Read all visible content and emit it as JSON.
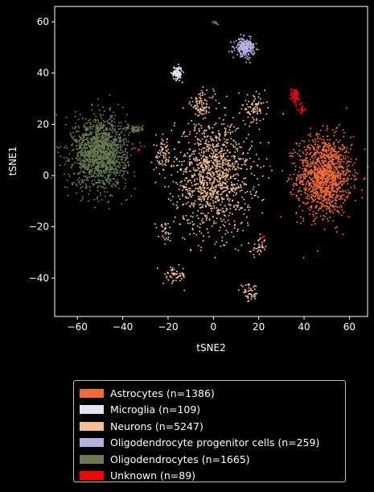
{
  "chart_data": {
    "type": "scatter",
    "xlabel": "tSNE2",
    "ylabel": "tSNE1",
    "xlim": [
      -70,
      68
    ],
    "ylim": [
      -55,
      66
    ],
    "xticks": [
      -60,
      -40,
      -20,
      0,
      20,
      40,
      60
    ],
    "yticks": [
      -40,
      -20,
      0,
      20,
      40,
      60
    ],
    "xtick_labels": [
      "−60",
      "−40",
      "−20",
      "0",
      "20",
      "40",
      "60"
    ],
    "ytick_labels": [
      "−40",
      "−20",
      "0",
      "20",
      "40",
      "60"
    ],
    "grid": false,
    "legend_position": "below plot",
    "series": [
      {
        "name": "Astrocytes (n=1386)",
        "color": "#f06b35",
        "count": 1386,
        "clusters": [
          {
            "x": 49,
            "y": 0,
            "sx": 7,
            "sy": 9
          }
        ]
      },
      {
        "name": "Microglia (n=109)",
        "color": "#e7e2f2",
        "count": 109,
        "clusters": [
          {
            "x": -16,
            "y": 40,
            "sx": 1.3,
            "sy": 1.5
          }
        ]
      },
      {
        "name": "Neurons (n=5247)",
        "color": "#f2be94",
        "count": 5247,
        "clusters": [
          {
            "x": 0,
            "y": 0,
            "sx": 10,
            "sy": 13
          },
          {
            "x": -5,
            "y": 28,
            "sx": 3,
            "sy": 3
          },
          {
            "x": 18,
            "y": 26,
            "sx": 3,
            "sy": 3
          },
          {
            "x": -21,
            "y": -22,
            "sx": 1.5,
            "sy": 2
          },
          {
            "x": -17,
            "y": -39,
            "sx": 3,
            "sy": 2
          },
          {
            "x": 16,
            "y": -46,
            "sx": 2.5,
            "sy": 2
          },
          {
            "x": 20,
            "y": -28,
            "sx": 2,
            "sy": 2
          },
          {
            "x": -22,
            "y": 8,
            "sx": 2,
            "sy": 4
          }
        ]
      },
      {
        "name": "Oligodendrocyte progenitor cells (n=259)",
        "color": "#b5b1e3",
        "count": 259,
        "clusters": [
          {
            "x": 14,
            "y": 50,
            "sx": 2.5,
            "sy": 2
          }
        ]
      },
      {
        "name": "Oligodendrocytes (n=1665)",
        "color": "#6a7a4e",
        "count": 1665,
        "clusters": [
          {
            "x": -50,
            "y": 9,
            "sx": 7,
            "sy": 8
          },
          {
            "x": -34,
            "y": 18,
            "sx": 2,
            "sy": 1
          },
          {
            "x": 1,
            "y": 59.5,
            "sx": 1,
            "sy": 0.5
          }
        ]
      },
      {
        "name": "Unknown (n=89)",
        "color": "#ff0000",
        "count": 89,
        "clusters": [
          {
            "x": 36,
            "y": 31,
            "sx": 1.2,
            "sy": 2
          },
          {
            "x": 39,
            "y": 26,
            "sx": 0.8,
            "sy": 1.2
          },
          {
            "x": -33,
            "y": 10,
            "sx": 0.3,
            "sy": 0.5
          },
          {
            "x": 22,
            "y": -24,
            "sx": 0.4,
            "sy": 0.4
          }
        ]
      }
    ]
  }
}
